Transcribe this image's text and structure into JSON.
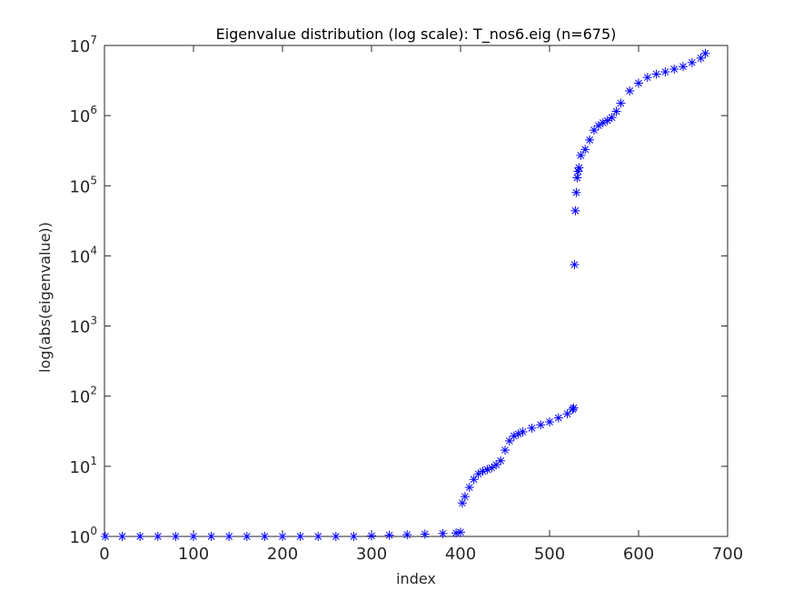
{
  "chart_data": {
    "type": "scatter",
    "title": "Eigenvalue distribution (log scale): T_nos6.eig (n=675)",
    "xlabel": "index",
    "ylabel": "log(abs(eigenvalue))",
    "xlim": [
      0,
      700
    ],
    "ylim": [
      1,
      10000000
    ],
    "yscale": "log",
    "grid": false,
    "marker": "*",
    "marker_color": "#0000ff",
    "x_ticks": [
      0,
      100,
      200,
      300,
      400,
      500,
      600,
      700
    ],
    "x_tick_labels": [
      "0",
      "100",
      "200",
      "300",
      "400",
      "500",
      "600",
      "700"
    ],
    "y_ticks": [
      1,
      10,
      100,
      1000,
      10000,
      100000,
      1000000,
      10000000
    ],
    "y_tick_labels": [
      {
        "base": "10",
        "exp": "0"
      },
      {
        "base": "10",
        "exp": "1"
      },
      {
        "base": "10",
        "exp": "2"
      },
      {
        "base": "10",
        "exp": "3"
      },
      {
        "base": "10",
        "exp": "4"
      },
      {
        "base": "10",
        "exp": "5"
      },
      {
        "base": "10",
        "exp": "6"
      },
      {
        "base": "10",
        "exp": "7"
      }
    ],
    "series": [
      {
        "color": "#0000ff",
        "x": [
          1,
          20,
          40,
          60,
          80,
          100,
          120,
          140,
          160,
          180,
          200,
          220,
          240,
          260,
          280,
          300,
          320,
          340,
          360,
          380,
          395,
          400,
          402,
          405,
          410,
          415,
          420,
          425,
          430,
          435,
          440,
          445,
          450,
          455,
          460,
          465,
          470,
          480,
          490,
          500,
          510,
          520,
          526,
          527,
          528,
          529,
          530,
          531,
          532,
          533,
          535,
          540,
          545,
          550,
          555,
          560,
          565,
          570,
          575,
          580,
          590,
          600,
          610,
          620,
          630,
          640,
          650,
          660,
          670,
          675
        ],
        "y": [
          1,
          1,
          1,
          1,
          1,
          1,
          1,
          1,
          1,
          1,
          1,
          1,
          1,
          1,
          1,
          1.02,
          1.04,
          1.06,
          1.08,
          1.1,
          1.12,
          1.15,
          3,
          3.7,
          5,
          6.5,
          7.8,
          8.5,
          9,
          9.5,
          10.5,
          12,
          17,
          23,
          27,
          29,
          31,
          35,
          39,
          43,
          49,
          56,
          65,
          68,
          7500,
          44000,
          80000,
          130000,
          160000,
          180000,
          270000,
          330000,
          450000,
          620000,
          720000,
          790000,
          850000,
          940000,
          1150000,
          1500000,
          2250000,
          2900000,
          3500000,
          3900000,
          4200000,
          4600000,
          5000000,
          5700000,
          6600000,
          7700000
        ]
      }
    ]
  }
}
